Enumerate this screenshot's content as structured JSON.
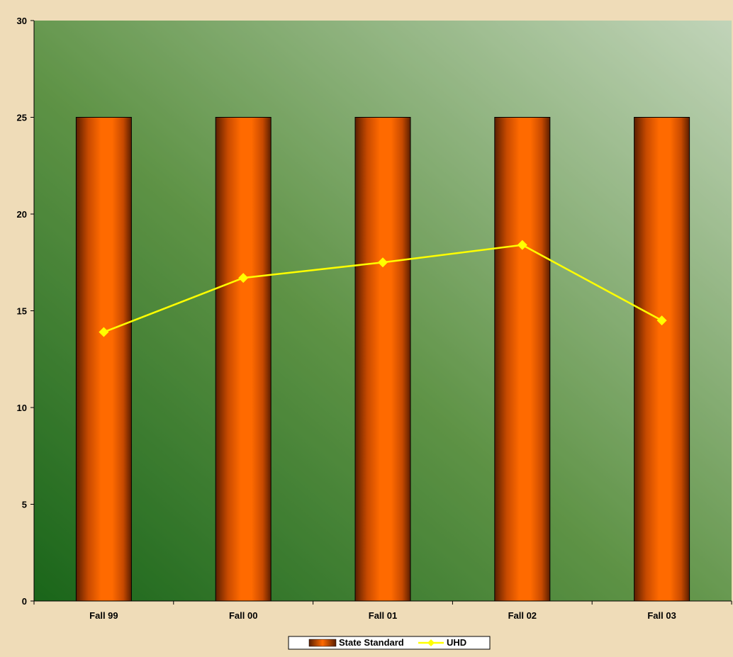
{
  "chart_data": {
    "type": "bar",
    "categories": [
      "Fall 99",
      "Fall 00",
      "Fall 01",
      "Fall 02",
      "Fall 03"
    ],
    "series": [
      {
        "name": "State Standard",
        "kind": "bar",
        "values": [
          25,
          25,
          25,
          25,
          25
        ],
        "color": "#ff6600"
      },
      {
        "name": "UHD",
        "kind": "line",
        "values": [
          13.9,
          16.7,
          17.5,
          18.4,
          14.5
        ],
        "color": "#ffff00"
      }
    ],
    "y_ticks": [
      "0",
      "5",
      "10",
      "15",
      "20",
      "25",
      "30"
    ],
    "ylim": [
      0,
      30
    ],
    "grid": false,
    "legend_position": "bottom-center",
    "colors": {
      "plot_dark": "#1e6b1e",
      "plot_light": "#dde8d2",
      "page_background": "#efdcb8"
    }
  }
}
